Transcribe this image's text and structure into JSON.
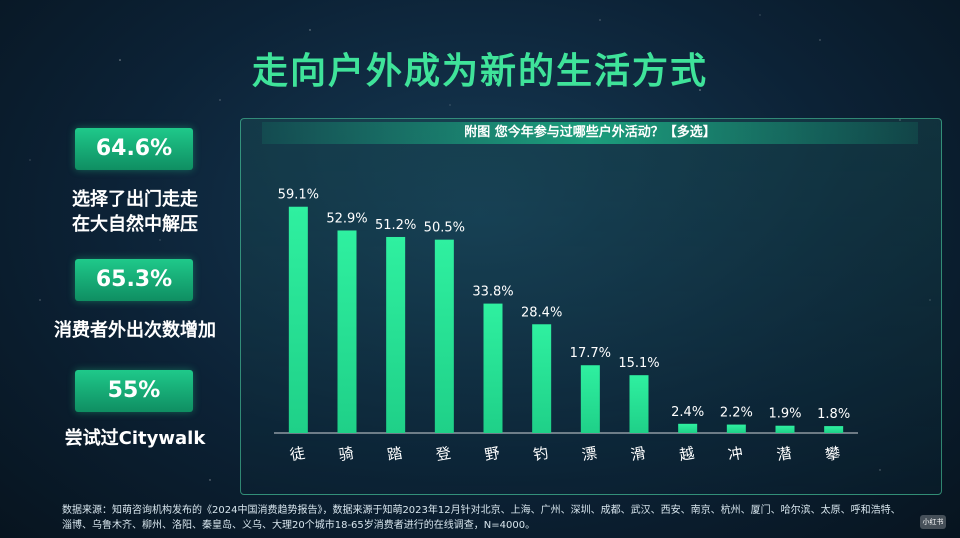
{
  "page": {
    "title": "走向户外成为新的生活方式",
    "stats": [
      {
        "value": "64.6%",
        "desc_line1": "选择了出门走走",
        "desc_line2": "在大自然中解压"
      },
      {
        "value": "65.3%",
        "desc_line1": "消费者外出次数增加",
        "desc_line2": ""
      },
      {
        "value": "55%",
        "desc_line1": "尝试过Citywalk",
        "desc_line2": ""
      }
    ],
    "footnote_line1": "数据来源：知萌咨询机构发布的《2024中国消费趋势报告》，数据来源于知萌2023年12月针对北京、上海、广州、深圳、成都、武汉、西安、南京、杭州、厦门、哈尔滨、太原、呼和浩特、",
    "footnote_line2": "淄博、乌鲁木齐、柳州、洛阳、秦皇岛、义乌、大理20个城市18-65岁消费者进行的在线调查，N=4000。",
    "watermark": "小红书"
  },
  "colors": {
    "accent": "#3fe39a",
    "bar_top": "#2ff0a0",
    "bar_bottom": "#1fd088",
    "axis": "#ffffff"
  },
  "chart_data": {
    "type": "bar",
    "title": "附图 您今年参与过哪些户外活动？【多选】",
    "categories": [
      "徒",
      "骑",
      "踏",
      "登",
      "野",
      "钓",
      "漂",
      "滑",
      "越",
      "冲",
      "潜",
      "攀"
    ],
    "values": [
      59.1,
      52.9,
      51.2,
      50.5,
      33.8,
      28.4,
      17.7,
      15.1,
      2.4,
      2.2,
      1.9,
      1.8
    ],
    "value_labels": [
      "59.1%",
      "52.9%",
      "51.2%",
      "50.5%",
      "33.8%",
      "28.4%",
      "17.7%",
      "15.1%",
      "2.4%",
      "2.2%",
      "1.9%",
      "1.8%"
    ],
    "ylim": [
      0,
      70
    ],
    "grid": false,
    "legend": "none"
  }
}
